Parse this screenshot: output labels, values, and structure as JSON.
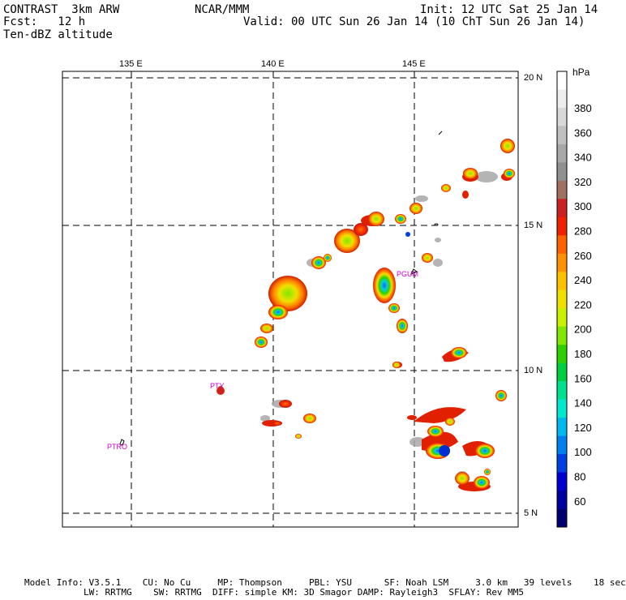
{
  "header": {
    "title_left": "CONTRAST  3km ARW",
    "title_center": "NCAR/MMM",
    "init": "Init: 12 UTC Sat 25 Jan 14",
    "fcst": "Fcst:   12 h",
    "valid": "Valid: 00 UTC Sun 26 Jan 14 (10 ChT Sun 26 Jan 14)",
    "field": "Ten-dBZ altitude"
  },
  "map": {
    "lon_labels": [
      "135 E",
      "140 E",
      "145 E"
    ],
    "lat_labels": [
      "20 N",
      "15 N",
      "10 N",
      "5 N"
    ],
    "stations": [
      {
        "id": "PTRO",
        "lon": 134.5,
        "lat": 7.35
      },
      {
        "id": "PTY",
        "lon": 138.2,
        "lat": 9.5
      },
      {
        "id": "PGUM",
        "lon": 144.8,
        "lat": 13.5
      }
    ],
    "grid_style": "dashed"
  },
  "colorbar": {
    "unit": "hPa",
    "labels": [
      "380",
      "360",
      "340",
      "320",
      "300",
      "280",
      "260",
      "240",
      "220",
      "200",
      "180",
      "160",
      "140",
      "120",
      "100",
      "80",
      "60"
    ],
    "colors": [
      "#ffffff",
      "#eeeeee",
      "#d8d8d8",
      "#c0c0c0",
      "#a8a8a8",
      "#909090",
      "#a07060",
      "#cc2020",
      "#f02000",
      "#ff6000",
      "#ff9000",
      "#ffc000",
      "#f0e000",
      "#c8f000",
      "#80e800",
      "#30d000",
      "#00d040",
      "#00e090",
      "#00e8d0",
      "#00b8f0",
      "#0080f0",
      "#0040e0",
      "#0000d0",
      "#0000a0",
      "#000070"
    ]
  },
  "footer": {
    "line1": "Model Info: V3.5.1    CU: No Cu     MP: Thompson     PBL: YSU      SF: Noah LSM     3.0 km   39 levels    18 sec",
    "line2": "LW: RRTMG    SW: RRTMG  DIFF: simple KM: 3D Smagor DAMP: Rayleigh3  SFLAY: Rev MM5"
  }
}
